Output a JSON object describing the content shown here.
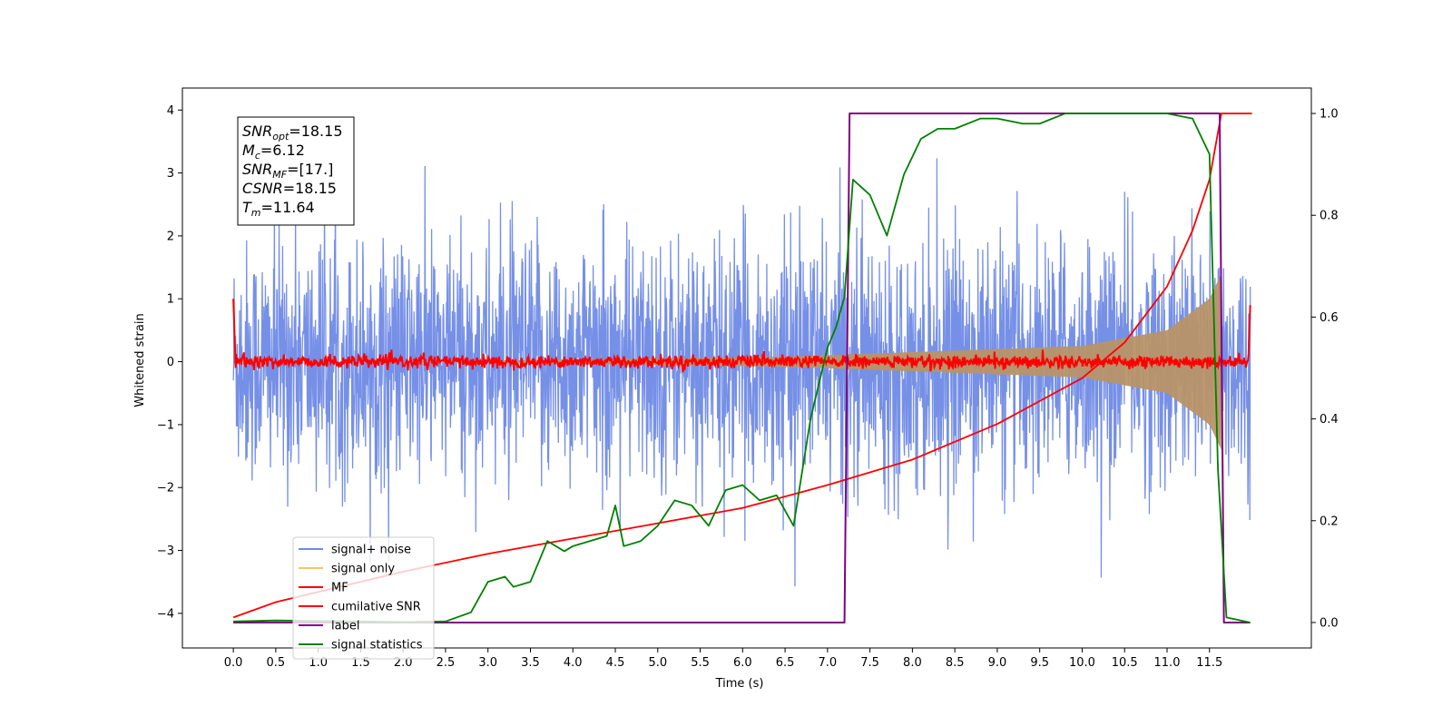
{
  "chart_data": {
    "type": "line",
    "xlabel": "Time (s)",
    "ylabel": "Whitened strain",
    "xlim": [
      -0.6,
      12.7
    ],
    "ylim": [
      -4.55,
      4.35
    ],
    "y2lim": [
      -0.05,
      1.05
    ],
    "x_ticks": [
      "0.0",
      "0.5",
      "1.0",
      "1.5",
      "2.0",
      "2.5",
      "3.0",
      "3.5",
      "4.0",
      "4.5",
      "5.0",
      "5.5",
      "6.0",
      "6.5",
      "7.0",
      "7.5",
      "8.0",
      "8.5",
      "9.0",
      "9.5",
      "10.0",
      "10.5",
      "11.0",
      "11.5"
    ],
    "y_ticks": [
      "4",
      "3",
      "2",
      "1",
      "0",
      "−1",
      "−2",
      "−3",
      "−4"
    ],
    "y2_ticks": [
      "1.0",
      "0.8",
      "0.6",
      "0.4",
      "0.2",
      "0.0"
    ],
    "grid": false,
    "legend_position": "lower-left",
    "annotation": {
      "lines": [
        {
          "sym": "SNR",
          "sub": "opt",
          "value": "=18.15"
        },
        {
          "sym": "M",
          "sub": "c",
          "value": "=6.12"
        },
        {
          "sym": "SNR",
          "sub": "MF",
          "value": "=[17.]"
        },
        {
          "sym": "CSNR",
          "sub": "",
          "value": "=18.15"
        },
        {
          "sym": "T",
          "sub": "m",
          "value": "=11.64"
        }
      ]
    },
    "series": [
      {
        "name": "signal+ noise",
        "color": "#6f8ae6",
        "axis": "left",
        "kind": "noise",
        "sigma": 1.0,
        "t_start": 0.0,
        "t_end": 11.98,
        "range": [
          -4.1,
          3.95
        ]
      },
      {
        "name": "signal only",
        "color": "#f5c36a",
        "axis": "left",
        "kind": "chirp-envelope",
        "amplitude_at": [
          [
            6.5,
            0.08
          ],
          [
            10.0,
            0.25
          ],
          [
            11.0,
            0.5
          ],
          [
            11.5,
            1.0
          ],
          [
            11.64,
            1.4
          ]
        ]
      },
      {
        "name": "MF",
        "color": "#ff0000",
        "axis": "left",
        "kind": "noise-small",
        "sigma": 0.05,
        "start_value": 1.0,
        "end_value": 0.9
      },
      {
        "name": "cumilative SNR",
        "color": "#ff0000",
        "axis": "right",
        "kind": "curve",
        "x": [
          0.0,
          0.5,
          1.0,
          2.0,
          3.0,
          4.0,
          5.0,
          6.0,
          7.0,
          8.0,
          9.0,
          10.0,
          10.5,
          11.0,
          11.3,
          11.5,
          11.64,
          12.0
        ],
        "y": [
          0.01,
          0.04,
          0.06,
          0.1,
          0.135,
          0.165,
          0.195,
          0.225,
          0.27,
          0.32,
          0.39,
          0.48,
          0.55,
          0.66,
          0.77,
          0.87,
          1.0,
          1.0
        ]
      },
      {
        "name": "label",
        "color": "#800080",
        "axis": "right",
        "kind": "step",
        "x": [
          0.0,
          7.2,
          7.26,
          11.62,
          11.67,
          11.98
        ],
        "y": [
          0.0,
          0.0,
          1.0,
          1.0,
          0.0,
          0.0
        ]
      },
      {
        "name": "signal statistics",
        "color": "#008000",
        "axis": "right",
        "kind": "curve",
        "x": [
          0.0,
          0.5,
          1.0,
          1.5,
          2.0,
          2.5,
          2.8,
          3.0,
          3.2,
          3.3,
          3.5,
          3.7,
          3.9,
          4.0,
          4.2,
          4.4,
          4.5,
          4.6,
          4.8,
          5.0,
          5.2,
          5.4,
          5.6,
          5.8,
          6.0,
          6.2,
          6.4,
          6.6,
          6.8,
          7.0,
          7.1,
          7.2,
          7.3,
          7.5,
          7.7,
          7.9,
          8.1,
          8.3,
          8.5,
          8.8,
          9.0,
          9.3,
          9.5,
          9.8,
          10.0,
          10.5,
          11.0,
          11.3,
          11.5,
          11.6,
          11.7,
          11.98
        ],
        "y": [
          0.002,
          0.004,
          0.003,
          0.002,
          0.001,
          0.002,
          0.02,
          0.08,
          0.09,
          0.07,
          0.08,
          0.16,
          0.14,
          0.15,
          0.16,
          0.17,
          0.23,
          0.15,
          0.16,
          0.19,
          0.24,
          0.23,
          0.19,
          0.26,
          0.27,
          0.24,
          0.25,
          0.19,
          0.4,
          0.54,
          0.58,
          0.64,
          0.87,
          0.84,
          0.76,
          0.88,
          0.95,
          0.97,
          0.97,
          0.99,
          0.99,
          0.98,
          0.98,
          1.0,
          1.0,
          1.0,
          1.0,
          0.99,
          0.92,
          0.3,
          0.01,
          0.0
        ]
      }
    ]
  }
}
